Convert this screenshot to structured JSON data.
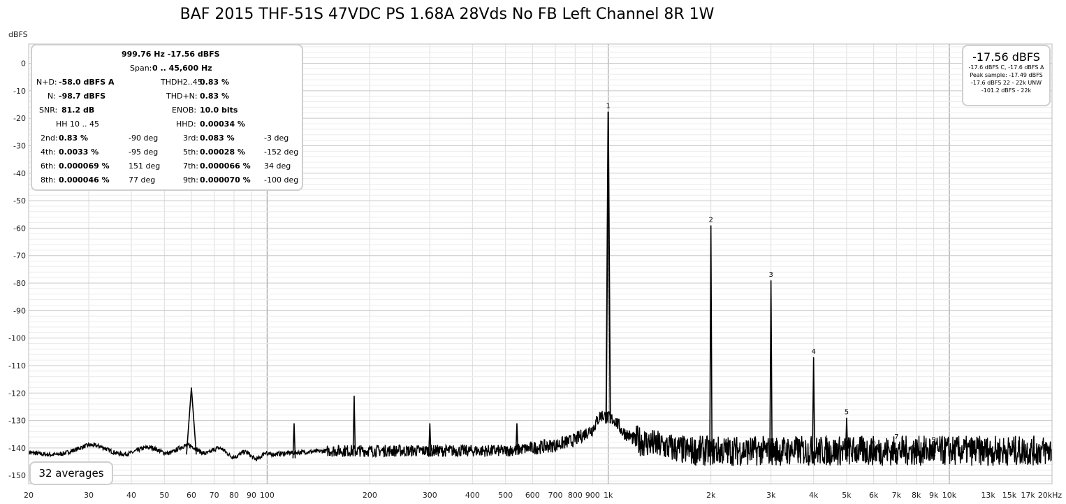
{
  "title": "BAF 2015 THF-51S 47VDC PS 1.68A 28Vds No FB Left Channel 8R 1W",
  "y_unit_label": "dBFS",
  "stats_panel": {
    "header1": "999.76 Hz  -17.56 dBFS",
    "header2_label": "Span:",
    "header2_value": "0 .. 45,600 Hz",
    "nd_label": "N+D:",
    "nd_value": "-58.0 dBFS A",
    "thd_label": "THDH2..45:",
    "thd_value": "0.83 %",
    "n_label": "N:",
    "n_value": "-98.7 dBFS",
    "thdn_label": "THD+N:",
    "thdn_value": "0.83 %",
    "snr_label": "SNR:",
    "snr_value": "81.2 dB",
    "enob_label": "ENOB:",
    "enob_value": "10.0 bits",
    "hh_label": "HH 10 .. 45",
    "hhd_label": "HHD:",
    "hhd_value": "0.00034 %",
    "harmonics": [
      {
        "l1": "2nd:",
        "v1": "0.83 %",
        "p1": "-90 deg",
        "l2": "3rd:",
        "v2": "0.083 %",
        "p2": "-3 deg"
      },
      {
        "l1": "4th:",
        "v1": "0.0033 %",
        "p1": "-95 deg",
        "l2": "5th:",
        "v2": "0.00028 %",
        "p2": "-152 deg"
      },
      {
        "l1": "6th:",
        "v1": "0.000069 %",
        "p1": "151 deg",
        "l2": "7th:",
        "v2": "0.000066 %",
        "p2": "34 deg"
      },
      {
        "l1": "8th:",
        "v1": "0.000046 %",
        "p1": "77 deg",
        "l2": "9th:",
        "v2": "0.000070 %",
        "p2": "-100 deg"
      }
    ]
  },
  "level_panel": {
    "main": "-17.56 dBFS",
    "line1": "-17.6 dBFS C, -17.6 dBFS A",
    "line2": "Peak sample: -17.49 dBFS",
    "line3": "-17.6 dBFS 22 - 22k UNW",
    "line4": "-101.2 dBFS - 22k"
  },
  "averages_label": "32 averages",
  "chart_data": {
    "type": "line",
    "x_scale": "log",
    "xlim": [
      20,
      20000
    ],
    "ylim": [
      -153,
      7
    ],
    "ylabel": "dBFS",
    "x_ticks": [
      {
        "v": 20,
        "t": "20"
      },
      {
        "v": 30,
        "t": "30"
      },
      {
        "v": 40,
        "t": "40"
      },
      {
        "v": 50,
        "t": "50"
      },
      {
        "v": 60,
        "t": "60"
      },
      {
        "v": 70,
        "t": "70"
      },
      {
        "v": 80,
        "t": "80"
      },
      {
        "v": 90,
        "t": "90"
      },
      {
        "v": 100,
        "t": "100"
      },
      {
        "v": 200,
        "t": "200"
      },
      {
        "v": 300,
        "t": "300"
      },
      {
        "v": 400,
        "t": "400"
      },
      {
        "v": 500,
        "t": "500"
      },
      {
        "v": 600,
        "t": "600"
      },
      {
        "v": 700,
        "t": "700"
      },
      {
        "v": 800,
        "t": "800"
      },
      {
        "v": 900,
        "t": "900"
      },
      {
        "v": 1000,
        "t": "1k"
      },
      {
        "v": 2000,
        "t": "2k"
      },
      {
        "v": 3000,
        "t": "3k"
      },
      {
        "v": 4000,
        "t": "4k"
      },
      {
        "v": 5000,
        "t": "5k"
      },
      {
        "v": 6000,
        "t": "6k"
      },
      {
        "v": 7000,
        "t": "7k"
      },
      {
        "v": 8000,
        "t": "8k"
      },
      {
        "v": 9000,
        "t": "9k"
      },
      {
        "v": 10000,
        "t": "10k"
      },
      {
        "v": 13000,
        "t": "13k"
      },
      {
        "v": 15000,
        "t": "15k"
      },
      {
        "v": 17000,
        "t": "17k"
      },
      {
        "v": 20000,
        "t": "20kHz"
      }
    ],
    "y_ticks": [
      0,
      -10,
      -20,
      -30,
      -40,
      -50,
      -60,
      -70,
      -80,
      -90,
      -100,
      -110,
      -120,
      -130,
      -140,
      -150
    ],
    "noise_floor": [
      [
        20,
        -142
      ],
      [
        25,
        -141
      ],
      [
        30,
        -140
      ],
      [
        35,
        -141
      ],
      [
        40,
        -141
      ],
      [
        45,
        -141
      ],
      [
        50,
        -141
      ],
      [
        55,
        -140
      ],
      [
        70,
        -141
      ],
      [
        90,
        -143
      ],
      [
        110,
        -142
      ],
      [
        150,
        -141
      ],
      [
        200,
        -141
      ],
      [
        250,
        -141
      ],
      [
        300,
        -141
      ],
      [
        400,
        -141
      ],
      [
        500,
        -141
      ],
      [
        600,
        -140
      ],
      [
        700,
        -139
      ],
      [
        800,
        -137
      ],
      [
        900,
        -133
      ],
      [
        950,
        -128
      ],
      [
        1050,
        -130
      ],
      [
        1100,
        -134
      ],
      [
        1200,
        -137
      ],
      [
        1400,
        -139
      ],
      [
        1700,
        -141
      ],
      [
        2000,
        -141
      ],
      [
        3000,
        -141
      ],
      [
        5000,
        -141
      ],
      [
        8000,
        -141
      ],
      [
        12000,
        -141
      ],
      [
        20000,
        -141
      ]
    ],
    "peaks": [
      {
        "f": 60,
        "db": -118
      },
      {
        "f": 120,
        "db": -131
      },
      {
        "f": 180,
        "db": -121
      },
      {
        "f": 300,
        "db": -131
      },
      {
        "f": 540,
        "db": -131
      },
      {
        "f": 1000,
        "db": -17.6
      },
      {
        "f": 2000,
        "db": -59
      },
      {
        "f": 3000,
        "db": -79
      },
      {
        "f": 4000,
        "db": -107
      },
      {
        "f": 5000,
        "db": -129
      },
      {
        "f": 6000,
        "db": -140
      },
      {
        "f": 7000,
        "db": -140
      },
      {
        "f": 8000,
        "db": -140
      },
      {
        "f": 9000,
        "db": -140
      }
    ],
    "harmonic_markers": [
      {
        "n": "1",
        "f": 1000,
        "db": -17.6
      },
      {
        "n": "2",
        "f": 2000,
        "db": -59
      },
      {
        "n": "3",
        "f": 3000,
        "db": -79
      },
      {
        "n": "4",
        "f": 4000,
        "db": -107
      },
      {
        "n": "5",
        "f": 5000,
        "db": -129
      },
      {
        "n": "6",
        "f": 6000,
        "db": -140
      },
      {
        "n": "7",
        "f": 7000,
        "db": -138
      },
      {
        "n": "8",
        "f": 8000,
        "db": -141
      },
      {
        "n": "9",
        "f": 9000,
        "db": -139
      }
    ]
  }
}
